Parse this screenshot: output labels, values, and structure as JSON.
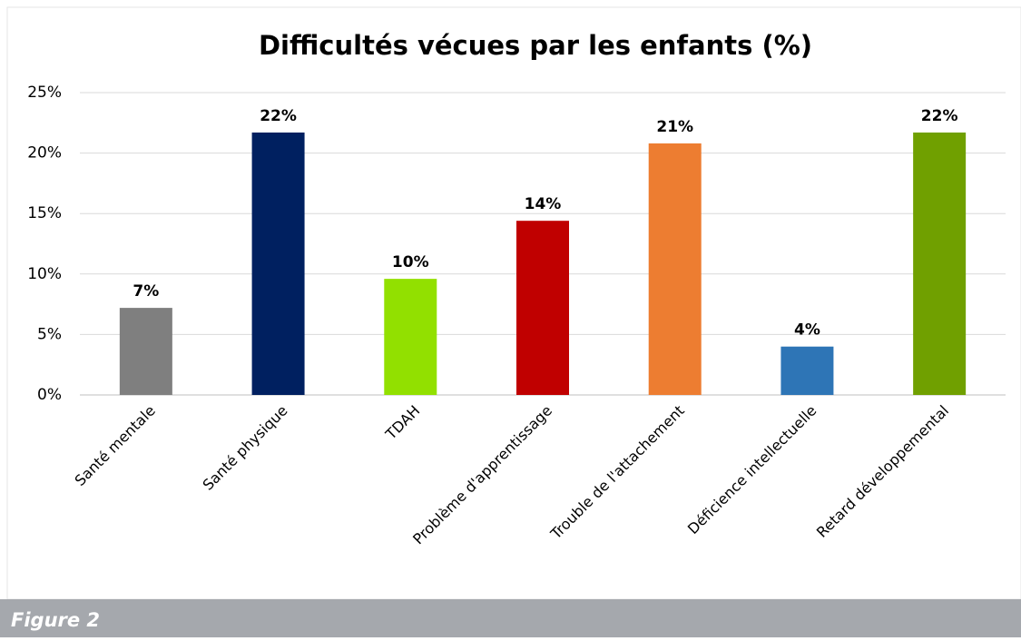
{
  "chart_data": {
    "type": "bar",
    "title": "Difficultés vécues par les enfants (%)",
    "categories": [
      "Santé mentale",
      "Santé physique",
      "TDAH",
      "Problème d'apprentissage",
      "Trouble de l'attachement",
      "Déficience intellectuelle",
      "Retard développemental"
    ],
    "values": [
      7.2,
      21.7,
      9.6,
      14.4,
      20.8,
      4.0,
      21.7
    ],
    "value_labels": [
      "7%",
      "22%",
      "10%",
      "14%",
      "21%",
      "4%",
      "22%"
    ],
    "colors": [
      "#7f7f7f",
      "#002060",
      "#92e000",
      "#c00000",
      "#ed7d31",
      "#2e75b6",
      "#70a000"
    ],
    "ylim": [
      0,
      25
    ],
    "yticks": [
      {
        "value": 0,
        "label": "0%"
      },
      {
        "value": 5,
        "label": "5%"
      },
      {
        "value": 10,
        "label": "10%"
      },
      {
        "value": 15,
        "label": "15%"
      },
      {
        "value": 20,
        "label": "20%"
      },
      {
        "value": 25,
        "label": "25%"
      }
    ],
    "grid": true
  },
  "caption": "Figure 2"
}
